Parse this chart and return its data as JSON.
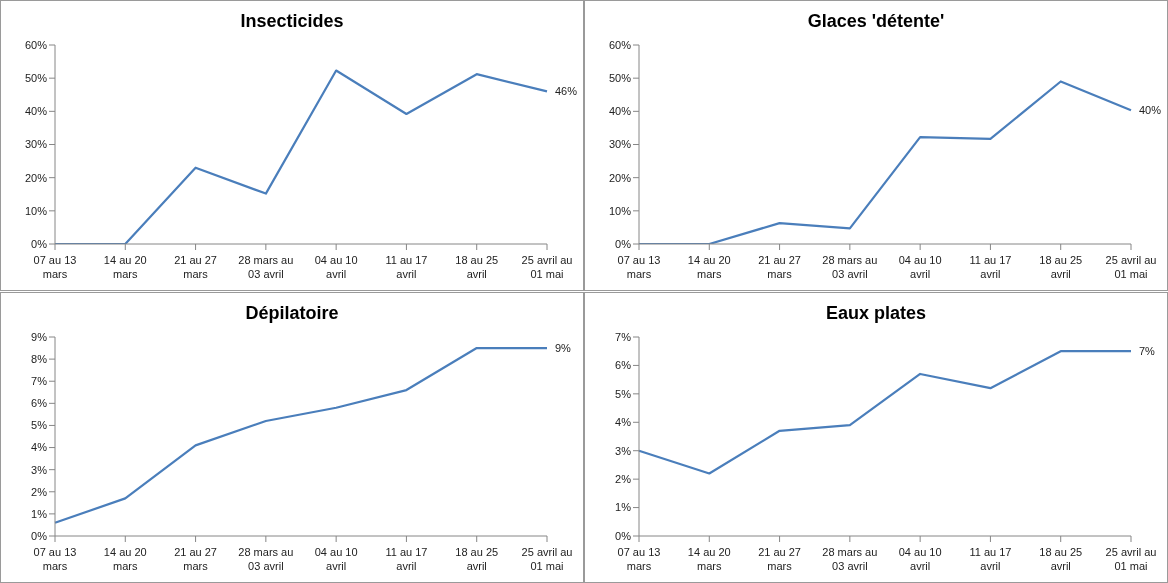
{
  "chart_data": [
    {
      "type": "line",
      "title": "Insecticides",
      "categories": [
        "07 au 13 mars",
        "14 au 20 mars",
        "21 au 27 mars",
        "28 mars au 03 avril",
        "04 au 10 avril",
        "11 au 17 avril",
        "18 au 25 avril",
        "25 avril au 01 mai"
      ],
      "series": [
        {
          "color": "#4a7ebb",
          "values": [
            0,
            0,
            23,
            15.2,
            52.3,
            39.2,
            51.2,
            46
          ],
          "value_labels": [
            null,
            null,
            null,
            null,
            null,
            null,
            null,
            "46%"
          ]
        }
      ],
      "ylim": [
        0,
        60
      ],
      "yticks": [
        {
          "value": 0,
          "label": "0%"
        },
        {
          "value": 10,
          "label": "10%"
        },
        {
          "value": 20,
          "label": "20%"
        },
        {
          "value": 30,
          "label": "30%"
        },
        {
          "value": 40,
          "label": "40%"
        },
        {
          "value": 50,
          "label": "50%"
        },
        {
          "value": 60,
          "label": "60%"
        }
      ],
      "grid": false,
      "legend": false
    },
    {
      "type": "line",
      "title": "Glaces 'détente'",
      "categories": [
        "07 au 13 mars",
        "14 au 20 mars",
        "21 au 27 mars",
        "28 mars au 03 avril",
        "04 au 10 avril",
        "11 au 17 avril",
        "18 au 25 avril",
        "25 avril au 01 mai"
      ],
      "series": [
        {
          "color": "#4a7ebb",
          "values": [
            0,
            0,
            6.3,
            4.7,
            32.2,
            31.7,
            49,
            40.3
          ],
          "value_labels": [
            null,
            null,
            null,
            null,
            null,
            null,
            null,
            "40%"
          ]
        }
      ],
      "ylim": [
        0,
        60
      ],
      "yticks": [
        {
          "value": 0,
          "label": "0%"
        },
        {
          "value": 10,
          "label": "10%"
        },
        {
          "value": 20,
          "label": "20%"
        },
        {
          "value": 30,
          "label": "30%"
        },
        {
          "value": 40,
          "label": "40%"
        },
        {
          "value": 50,
          "label": "50%"
        },
        {
          "value": 60,
          "label": "60%"
        }
      ],
      "grid": false,
      "legend": false
    },
    {
      "type": "line",
      "title": "Dépilatoire",
      "categories": [
        "07 au 13 mars",
        "14 au 20 mars",
        "21 au 27 mars",
        "28 mars au 03 avril",
        "04 au 10 avril",
        "11 au 17 avril",
        "18 au 25 avril",
        "25 avril au 01 mai"
      ],
      "series": [
        {
          "color": "#4a7ebb",
          "values": [
            0.6,
            1.7,
            4.1,
            5.2,
            5.8,
            6.6,
            8.5,
            8.5
          ],
          "value_labels": [
            null,
            null,
            null,
            null,
            null,
            null,
            null,
            "9%"
          ]
        }
      ],
      "ylim": [
        0,
        9
      ],
      "yticks": [
        {
          "value": 0,
          "label": "0%"
        },
        {
          "value": 1,
          "label": "1%"
        },
        {
          "value": 2,
          "label": "2%"
        },
        {
          "value": 3,
          "label": "3%"
        },
        {
          "value": 4,
          "label": "4%"
        },
        {
          "value": 5,
          "label": "5%"
        },
        {
          "value": 6,
          "label": "6%"
        },
        {
          "value": 7,
          "label": "7%"
        },
        {
          "value": 8,
          "label": "8%"
        },
        {
          "value": 9,
          "label": "9%"
        }
      ],
      "grid": false,
      "legend": false
    },
    {
      "type": "line",
      "title": "Eaux plates",
      "categories": [
        "07 au 13 mars",
        "14 au 20 mars",
        "21 au 27 mars",
        "28 mars au 03 avril",
        "04 au 10 avril",
        "11 au 17 avril",
        "18 au 25 avril",
        "25 avril au 01 mai"
      ],
      "series": [
        {
          "color": "#4a7ebb",
          "values": [
            3.0,
            2.2,
            3.7,
            3.9,
            5.7,
            5.2,
            6.5,
            6.5
          ],
          "value_labels": [
            null,
            null,
            null,
            null,
            null,
            null,
            null,
            "7%"
          ]
        }
      ],
      "ylim": [
        0,
        7
      ],
      "yticks": [
        {
          "value": 0,
          "label": "0%"
        },
        {
          "value": 1,
          "label": "1%"
        },
        {
          "value": 2,
          "label": "2%"
        },
        {
          "value": 3,
          "label": "3%"
        },
        {
          "value": 4,
          "label": "4%"
        },
        {
          "value": 5,
          "label": "5%"
        },
        {
          "value": 6,
          "label": "6%"
        },
        {
          "value": 7,
          "label": "7%"
        }
      ],
      "grid": false,
      "legend": false
    }
  ]
}
